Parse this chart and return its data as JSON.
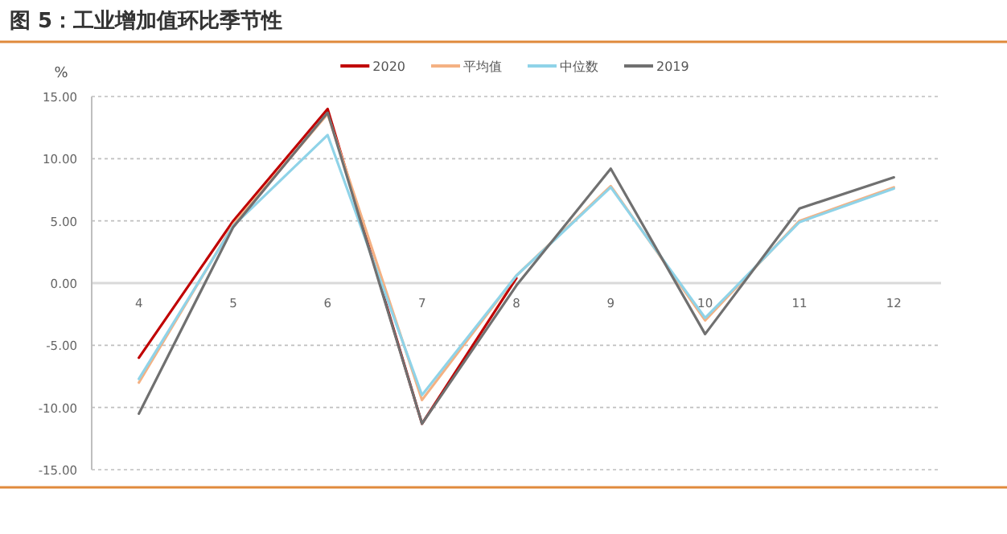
{
  "chart_data": {
    "type": "line",
    "title": "图 5：工业增加值环比季节性",
    "ylabel": "%",
    "categories": [
      "4",
      "5",
      "6",
      "7",
      "8",
      "9",
      "10",
      "11",
      "12"
    ],
    "series": [
      {
        "name": "2020",
        "color": "#c00000",
        "values": [
          -6.0,
          5.0,
          14.0,
          -11.3,
          0.4,
          null,
          null,
          null,
          null
        ]
      },
      {
        "name": "平均值",
        "color": "#f4b183",
        "values": [
          -8.0,
          4.7,
          13.6,
          -9.4,
          0.6,
          7.8,
          -3.0,
          5.0,
          7.7
        ]
      },
      {
        "name": "中位数",
        "color": "#8fd3e8",
        "values": [
          -7.7,
          4.6,
          11.9,
          -9.0,
          0.6,
          7.7,
          -2.8,
          4.9,
          7.6
        ]
      },
      {
        "name": "2019",
        "color": "#707070",
        "values": [
          -10.5,
          4.5,
          13.7,
          -11.3,
          -0.2,
          9.2,
          -4.1,
          6.0,
          8.5
        ]
      }
    ],
    "ylim": [
      -15,
      15
    ],
    "yticks": [
      {
        "value": -15,
        "label": "-15.00"
      },
      {
        "value": -10,
        "label": "-10.00"
      },
      {
        "value": -5,
        "label": "-5.00"
      },
      {
        "value": 0,
        "label": "0.00"
      },
      {
        "value": 5,
        "label": "5.00"
      },
      {
        "value": 10,
        "label": "10.00"
      },
      {
        "value": 15,
        "label": "15.00"
      }
    ],
    "grid": "y",
    "legend": "top",
    "marker": "none",
    "line_style": "solid"
  }
}
